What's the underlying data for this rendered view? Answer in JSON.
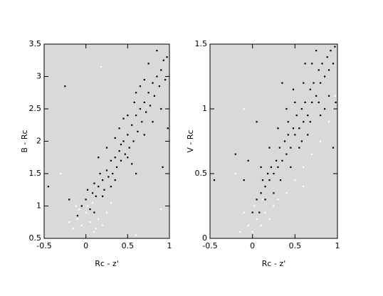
{
  "chart_data": [
    {
      "type": "scatter",
      "xlabel": "Rc - z'",
      "ylabel": "B - Rc",
      "xlim": [
        -0.5,
        1
      ],
      "ylim": [
        0.5,
        3.5
      ],
      "xticks": [
        -0.5,
        0,
        0.5,
        1
      ],
      "yticks": [
        0.5,
        1,
        1.5,
        2,
        2.5,
        3,
        3.5
      ],
      "background": "#d9d9d9",
      "series": [
        {
          "color": "#000000",
          "x": [
            -0.05,
            0,
            0.02,
            0.05,
            0.08,
            0.1,
            0.12,
            0.15,
            0.17,
            0.2,
            0.22,
            0.25,
            0.27,
            0.3,
            0.32,
            0.35,
            0.37,
            0.4,
            0.42,
            0.45,
            0.47,
            0.5,
            0.52,
            0.55,
            0.57,
            0.6,
            0.62,
            0.65,
            0.67,
            0.7,
            0.72,
            0.75,
            0.77,
            0.8,
            0.82,
            0.85,
            0.88,
            0.9,
            0.93,
            0.95,
            0.97,
            0.6,
            0.5,
            0.4,
            0.3,
            0.35,
            0.55,
            0.7,
            0.8,
            0.45,
            0.65,
            0.25,
            -0.1,
            -0.2,
            -0.25,
            -0.45,
            0.9,
            0.98,
            0.15,
            0.75,
            0.6,
            0.35,
            0.1,
            0.2,
            0.5,
            0.85,
            0.7,
            0.92,
            0.58,
            0.42
          ],
          "values": [
            1.0,
            1.1,
            1.25,
            0.95,
            1.2,
            1.35,
            1.15,
            1.3,
            1.5,
            1.4,
            1.25,
            1.55,
            1.45,
            1.7,
            1.5,
            1.75,
            1.6,
            1.85,
            1.7,
            2.0,
            1.8,
            2.1,
            1.9,
            2.25,
            2.0,
            2.4,
            2.15,
            2.5,
            2.3,
            2.6,
            2.45,
            2.75,
            2.55,
            2.9,
            2.7,
            3.0,
            2.85,
            3.1,
            3.25,
            2.95,
            3.3,
            2.75,
            2.4,
            2.2,
            1.3,
            1.4,
            1.65,
            2.1,
            2.3,
            2.35,
            2.85,
            1.9,
            0.85,
            1.1,
            2.85,
            1.3,
            2.5,
            2.2,
            1.75,
            3.2,
            1.5,
            2.05,
            0.9,
            1.15,
            1.75,
            3.4,
            2.95,
            1.6,
            2.6,
            1.95
          ]
        },
        {
          "color": "#ffffff",
          "x": [
            -0.1,
            -0.05,
            0,
            0.05,
            -0.15,
            0.1,
            0.02,
            -0.08,
            0.15,
            0.2,
            -0.2,
            0.08,
            0.25,
            0.3,
            -0.12,
            0.12,
            0.6,
            0.9,
            0.18,
            -0.3
          ],
          "values": [
            0.8,
            0.7,
            0.9,
            0.75,
            0.65,
            0.6,
            1.0,
            0.95,
            0.8,
            0.7,
            0.75,
            1.05,
            0.9,
            1.05,
            1.0,
            0.65,
            0.55,
            0.95,
            3.15,
            1.5
          ]
        }
      ]
    },
    {
      "type": "scatter",
      "xlabel": "Rc - z'",
      "ylabel": "V - Rc",
      "xlim": [
        -0.5,
        1
      ],
      "ylim": [
        0,
        1.5
      ],
      "xticks": [
        -0.5,
        0,
        0.5,
        1
      ],
      "yticks": [
        0,
        0.5,
        1,
        1.5
      ],
      "background": "#d9d9d9",
      "series": [
        {
          "color": "#000000",
          "x": [
            0,
            0.05,
            0.1,
            0.12,
            0.15,
            0.18,
            0.2,
            0.22,
            0.25,
            0.28,
            0.3,
            0.32,
            0.35,
            0.38,
            0.4,
            0.42,
            0.45,
            0.48,
            0.5,
            0.52,
            0.55,
            0.58,
            0.6,
            0.62,
            0.65,
            0.68,
            0.7,
            0.72,
            0.75,
            0.78,
            0.8,
            0.82,
            0.85,
            0.88,
            0.9,
            0.92,
            0.95,
            0.97,
            0.3,
            0.4,
            0.5,
            0.6,
            0.7,
            0.2,
            0.1,
            0.45,
            0.55,
            0.65,
            0.8,
            0.9,
            -0.1,
            -0.05,
            0.05,
            -0.2,
            -0.45,
            0.35,
            0.75,
            0.25,
            0.15,
            0.85,
            0.98,
            0.62,
            0.42,
            0.58,
            0.78,
            0.33,
            0.48,
            0.68,
            0.08,
            0.95
          ],
          "values": [
            0.2,
            0.3,
            0.35,
            0.45,
            0.4,
            0.5,
            0.45,
            0.55,
            0.5,
            0.6,
            0.55,
            0.7,
            0.6,
            0.75,
            0.65,
            0.8,
            0.7,
            0.85,
            0.8,
            0.95,
            0.85,
            1.0,
            0.9,
            1.05,
            0.95,
            1.15,
            1.05,
            1.2,
            1.1,
            1.3,
            1.2,
            1.35,
            1.25,
            1.4,
            1.3,
            1.45,
            1.35,
            1.48,
            0.85,
            1.0,
            1.05,
            1.2,
            1.35,
            0.7,
            0.55,
            0.55,
            0.7,
            0.8,
            0.95,
            1.1,
            0.45,
            0.6,
            0.9,
            0.65,
            0.45,
            1.2,
            1.45,
            0.35,
            0.3,
            1.0,
            1.05,
            1.35,
            0.9,
            0.75,
            1.05,
            0.45,
            1.15,
            0.9,
            0.2,
            0.7
          ]
        },
        {
          "color": "#ffffff",
          "x": [
            -0.05,
            0,
            0.05,
            0.1,
            -0.1,
            0.15,
            0.02,
            0.2,
            0.12,
            -0.15,
            0.25,
            0.3,
            0.4,
            0.5,
            0.6,
            0.7,
            0.8,
            0.9,
            0.95,
            0.97,
            -0.2,
            0.6,
            -0.1
          ],
          "values": [
            0.1,
            0.05,
            0.15,
            0.1,
            0.2,
            0.2,
            0.25,
            0.15,
            0.3,
            0.05,
            0.25,
            0.3,
            0.35,
            0.45,
            0.55,
            0.65,
            0.75,
            0.9,
            1.0,
            1.1,
            0.5,
            0.4,
            1.0
          ]
        }
      ]
    }
  ]
}
